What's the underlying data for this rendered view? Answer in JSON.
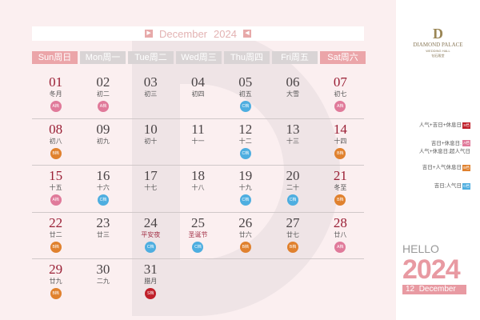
{
  "header": {
    "month": "December",
    "year": "2024",
    "prev_icon": "triangle-right-icon",
    "next_icon": "triangle-left-icon"
  },
  "weekdays": [
    "Sun周日",
    "Mon周一",
    "Tue周二",
    "Wed周三",
    "Thu周四",
    "Fri周五",
    "Sat周六"
  ],
  "weeks": [
    [
      {
        "day": "01",
        "lunar": "冬月",
        "badge": "A档"
      },
      {
        "day": "02",
        "lunar": "初二",
        "badge": "A档"
      },
      {
        "day": "03",
        "lunar": "初三"
      },
      {
        "day": "04",
        "lunar": "初四"
      },
      {
        "day": "05",
        "lunar": "初五",
        "badge": "C档"
      },
      {
        "day": "06",
        "lunar": "大雪"
      },
      {
        "day": "07",
        "lunar": "初七",
        "badge": "A档"
      }
    ],
    [
      {
        "day": "08",
        "lunar": "初八",
        "badge": "B档"
      },
      {
        "day": "09",
        "lunar": "初九"
      },
      {
        "day": "10",
        "lunar": "初十"
      },
      {
        "day": "11",
        "lunar": "十一"
      },
      {
        "day": "12",
        "lunar": "十二",
        "badge": "C档"
      },
      {
        "day": "13",
        "lunar": "十三"
      },
      {
        "day": "14",
        "lunar": "十四",
        "badge": "B档"
      }
    ],
    [
      {
        "day": "15",
        "lunar": "十五",
        "badge": "A档"
      },
      {
        "day": "16",
        "lunar": "十六",
        "badge": "C档"
      },
      {
        "day": "17",
        "lunar": "十七"
      },
      {
        "day": "18",
        "lunar": "十八"
      },
      {
        "day": "19",
        "lunar": "十九",
        "badge": "C档"
      },
      {
        "day": "20",
        "lunar": "二十",
        "badge": "C档"
      },
      {
        "day": "21",
        "lunar": "冬至",
        "badge": "B档"
      }
    ],
    [
      {
        "day": "22",
        "lunar": "廿二",
        "badge": "B档"
      },
      {
        "day": "23",
        "lunar": "廿三"
      },
      {
        "day": "24",
        "lunar": "平安夜",
        "badge": "C档",
        "fest": true
      },
      {
        "day": "25",
        "lunar": "圣诞节",
        "badge": "C档",
        "fest": true
      },
      {
        "day": "26",
        "lunar": "廿六",
        "badge": "B档"
      },
      {
        "day": "27",
        "lunar": "廿七",
        "badge": "B档"
      },
      {
        "day": "28",
        "lunar": "廿八",
        "badge": "A档"
      }
    ],
    [
      {
        "day": "29",
        "lunar": "廿九",
        "badge": "B档"
      },
      {
        "day": "30",
        "lunar": "二九"
      },
      {
        "day": "31",
        "lunar": "腊月",
        "badge": "S档"
      },
      null,
      null,
      null,
      null
    ]
  ],
  "badge_colors": {
    "S档": "#c0202a",
    "A档": "#e07a9a",
    "B档": "#e0812e",
    "C档": "#4eaee0"
  },
  "brand": {
    "mark": "D",
    "name": "DIAMOND PALACE",
    "sub": "WEDDING HALL",
    "cn": "钻石殿堂"
  },
  "legend": [
    {
      "text": "人气+吉日+休息日",
      "badge": "S档"
    },
    {
      "text": "吉日+休息日;",
      "text2": "人气+休息日;超人气日",
      "badge": "A档"
    },
    {
      "text": "吉日+人气休息日",
      "badge": "B档"
    },
    {
      "text": "吉日;人气日",
      "badge": "C档"
    }
  ],
  "footer": {
    "hello": "HELLO",
    "year": "2024",
    "month_num": "12",
    "month": "December"
  }
}
